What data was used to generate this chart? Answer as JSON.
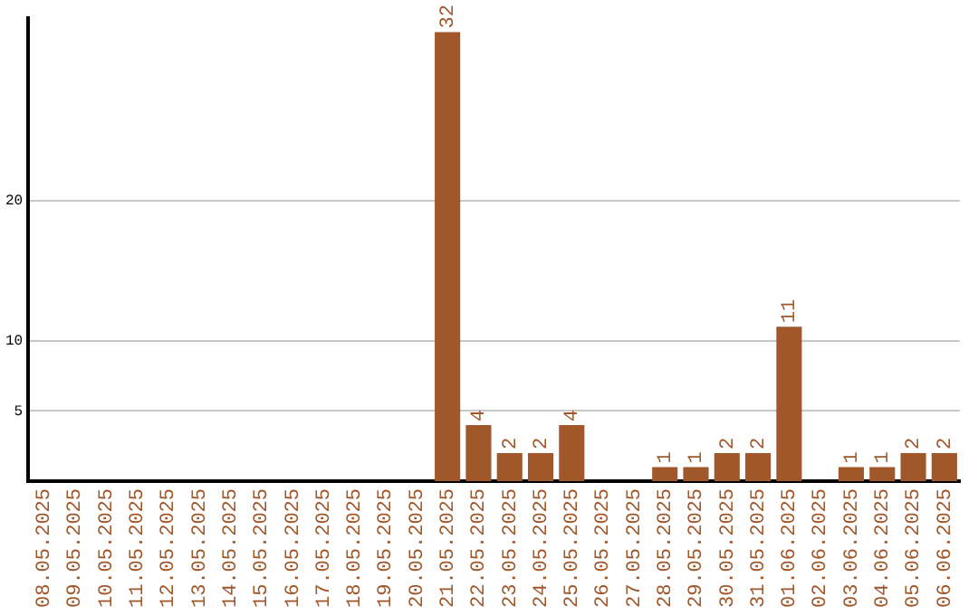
{
  "chart_data": {
    "type": "bar",
    "categories": [
      "08.05.2025",
      "09.05.2025",
      "10.05.2025",
      "11.05.2025",
      "12.05.2025",
      "13.05.2025",
      "14.05.2025",
      "15.05.2025",
      "16.05.2025",
      "17.05.2025",
      "18.05.2025",
      "19.05.2025",
      "20.05.2025",
      "21.05.2025",
      "22.05.2025",
      "23.05.2025",
      "24.05.2025",
      "25.05.2025",
      "26.05.2025",
      "27.05.2025",
      "28.05.2025",
      "29.05.2025",
      "30.05.2025",
      "31.05.2025",
      "01.06.2025",
      "02.06.2025",
      "03.06.2025",
      "04.06.2025",
      "05.06.2025",
      "06.06.2025"
    ],
    "values": [
      0,
      0,
      0,
      0,
      0,
      0,
      0,
      0,
      0,
      0,
      0,
      0,
      0,
      32,
      4,
      2,
      2,
      4,
      0,
      0,
      1,
      1,
      2,
      2,
      11,
      0,
      1,
      1,
      2,
      2
    ],
    "value_labels": [
      null,
      null,
      null,
      null,
      null,
      null,
      null,
      null,
      null,
      null,
      null,
      null,
      null,
      "32",
      "4",
      "2",
      "2",
      "4",
      null,
      null,
      "1",
      "1",
      "2",
      "2",
      "11",
      null,
      "1",
      "1",
      "2",
      "2"
    ],
    "color": "#a0572a",
    "ylim": [
      0,
      33
    ],
    "yticks": [
      5,
      10,
      20
    ],
    "grid": "y",
    "legend": false
  }
}
